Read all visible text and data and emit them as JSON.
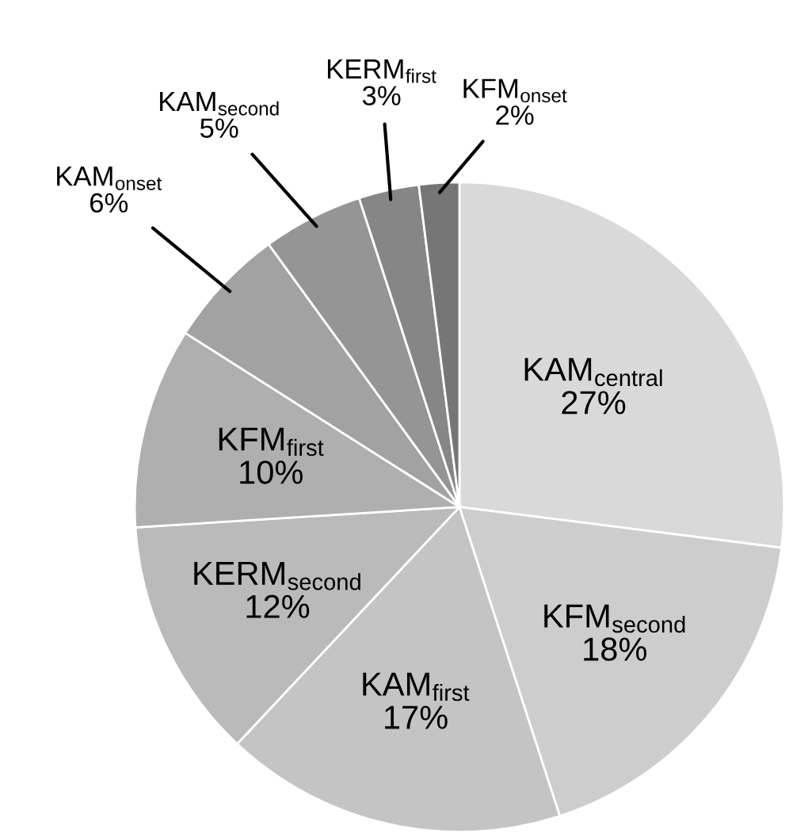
{
  "chart_data": {
    "type": "pie",
    "categories": [
      "KAM$_{central}$",
      "KFM$_{second}$",
      "KAM$_{first}$",
      "KERM$_{second}$",
      "KFM$_{first}$",
      "KAM$_{onset}$",
      "KAM$_{second}$",
      "KERM$_{first}$",
      "KFM$_{onset}$"
    ],
    "values": [
      27,
      18,
      17,
      12,
      10,
      6,
      5,
      3,
      2
    ],
    "colors": [
      "#d9d9d9",
      "#cdcdcd",
      "#c4c4c4",
      "#bababa",
      "#afafaf",
      "#a2a2a2",
      "#959595",
      "#868686",
      "#767676"
    ],
    "value_labels": [
      "27%",
      "18%",
      "17%",
      "12%",
      "10%",
      "6%",
      "5%",
      "3%",
      "2%"
    ]
  }
}
